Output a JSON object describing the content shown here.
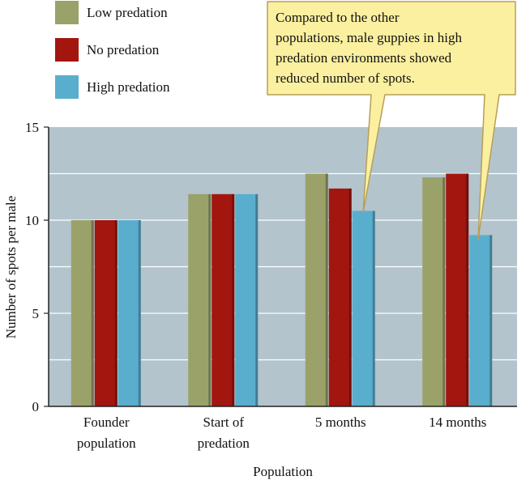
{
  "colors": {
    "low": "#9aa26a",
    "none": "#a3150f",
    "high": "#5aaecd",
    "plot_bg": "#b3c4cd",
    "gridline": "#ffffff",
    "callout_fill": "#fbf0a0",
    "callout_stroke": "#b59f5a"
  },
  "callout": {
    "lines": [
      "Compared to the other",
      "populations, male guppies in high",
      "predation environments showed",
      "reduced number of spots."
    ]
  },
  "chart_data": {
    "type": "bar",
    "title": "",
    "xlabel": "Population",
    "ylabel": "Number of spots per male",
    "ylim": [
      0,
      15
    ],
    "yticks": [
      0,
      5,
      10,
      15
    ],
    "grid": true,
    "legend_position": "top-left",
    "categories": [
      [
        "Founder",
        "population"
      ],
      [
        "Start of",
        "predation"
      ],
      [
        "5 months"
      ],
      [
        "14 months"
      ]
    ],
    "series": [
      {
        "name": "Low predation",
        "color": "#9aa26a",
        "values": [
          10.0,
          11.4,
          12.5,
          12.3
        ]
      },
      {
        "name": "No predation",
        "color": "#a3150f",
        "values": [
          10.0,
          11.4,
          11.7,
          12.5
        ]
      },
      {
        "name": "High predation",
        "color": "#5aaecd",
        "values": [
          10.0,
          11.4,
          10.5,
          9.2
        ]
      }
    ]
  }
}
